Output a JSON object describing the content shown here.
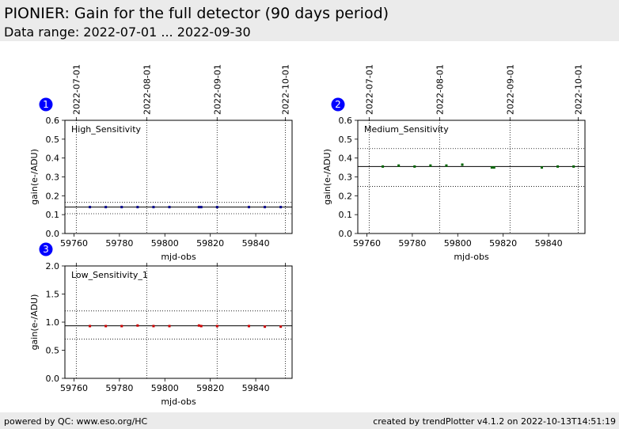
{
  "header": {
    "title": "PIONIER: Gain for the full detector (90 days period)",
    "subtitle": "Data range: 2022-07-01 ... 2022-09-30"
  },
  "footer": {
    "left": "powered by QC: www.eso.org/HC",
    "right": "created by trendPlotter v4.1.2 on 2022-10-13T14:51:19"
  },
  "colors": {
    "header_bg": "#ebebeb",
    "badge": "#0000ff",
    "panel1_points": "#00008b",
    "panel2_points": "#006400",
    "panel3_points": "#cc0000"
  },
  "chart_data": [
    {
      "type": "scatter",
      "panel_number": "1",
      "label": "High_Sensitivity",
      "xlabel": "mjd-obs",
      "ylabel": "gain(e-/ADU)",
      "xlim": [
        59756,
        59856
      ],
      "ylim": [
        0.0,
        0.6
      ],
      "xticks": [
        59760,
        59780,
        59800,
        59820,
        59840
      ],
      "yticks": [
        "0.0",
        "0.1",
        "0.2",
        "0.3",
        "0.4",
        "0.5",
        "0.6"
      ],
      "date_ticks": [
        {
          "label": "2022-07-01",
          "mjd": 59761
        },
        {
          "label": "2022-08-01",
          "mjd": 59792
        },
        {
          "label": "2022-09-01",
          "mjd": 59823
        },
        {
          "label": "2022-10-01",
          "mjd": 59853
        }
      ],
      "reference_line": 0.14,
      "limits": [
        0.105,
        0.165
      ],
      "points": [
        {
          "x": 59767,
          "y": 0.14
        },
        {
          "x": 59774,
          "y": 0.14
        },
        {
          "x": 59781,
          "y": 0.14
        },
        {
          "x": 59788,
          "y": 0.14
        },
        {
          "x": 59795,
          "y": 0.14
        },
        {
          "x": 59802,
          "y": 0.14
        },
        {
          "x": 59815,
          "y": 0.14
        },
        {
          "x": 59816,
          "y": 0.14
        },
        {
          "x": 59823,
          "y": 0.14
        },
        {
          "x": 59837,
          "y": 0.14
        },
        {
          "x": 59844,
          "y": 0.14
        },
        {
          "x": 59851,
          "y": 0.14
        }
      ]
    },
    {
      "type": "scatter",
      "panel_number": "2",
      "label": "Medium_Sensitivity",
      "xlabel": "mjd-obs",
      "ylabel": "gain(e-/ADU)",
      "xlim": [
        59756,
        59856
      ],
      "ylim": [
        0.0,
        0.6
      ],
      "xticks": [
        59760,
        59780,
        59800,
        59820,
        59840
      ],
      "yticks": [
        "0.0",
        "0.1",
        "0.2",
        "0.3",
        "0.4",
        "0.5",
        "0.6"
      ],
      "date_ticks": [
        {
          "label": "2022-07-01",
          "mjd": 59761
        },
        {
          "label": "2022-08-01",
          "mjd": 59792
        },
        {
          "label": "2022-09-01",
          "mjd": 59823
        },
        {
          "label": "2022-10-01",
          "mjd": 59853
        }
      ],
      "reference_line": 0.355,
      "limits": [
        0.25,
        0.45
      ],
      "points": [
        {
          "x": 59767,
          "y": 0.355
        },
        {
          "x": 59774,
          "y": 0.36
        },
        {
          "x": 59781,
          "y": 0.355
        },
        {
          "x": 59788,
          "y": 0.36
        },
        {
          "x": 59795,
          "y": 0.36
        },
        {
          "x": 59802,
          "y": 0.365
        },
        {
          "x": 59815,
          "y": 0.35
        },
        {
          "x": 59816,
          "y": 0.35
        },
        {
          "x": 59837,
          "y": 0.35
        },
        {
          "x": 59844,
          "y": 0.355
        },
        {
          "x": 59851,
          "y": 0.355
        }
      ]
    },
    {
      "type": "scatter",
      "panel_number": "3",
      "label": "Low_Sensitivity_1",
      "xlabel": "mjd-obs",
      "ylabel": "gain(e-/ADU)",
      "xlim": [
        59756,
        59856
      ],
      "ylim": [
        0.0,
        2.0
      ],
      "xticks": [
        59760,
        59780,
        59800,
        59820,
        59840
      ],
      "yticks": [
        "0.0",
        "0.5",
        "1.0",
        "1.5",
        "2.0"
      ],
      "date_ticks": [
        {
          "label": "",
          "mjd": 59761
        },
        {
          "label": "",
          "mjd": 59792
        },
        {
          "label": "",
          "mjd": 59823
        },
        {
          "label": "",
          "mjd": 59853
        }
      ],
      "reference_line": 0.935,
      "limits": [
        0.7,
        1.2
      ],
      "points": [
        {
          "x": 59767,
          "y": 0.93
        },
        {
          "x": 59774,
          "y": 0.93
        },
        {
          "x": 59781,
          "y": 0.93
        },
        {
          "x": 59788,
          "y": 0.94
        },
        {
          "x": 59795,
          "y": 0.93
        },
        {
          "x": 59802,
          "y": 0.93
        },
        {
          "x": 59815,
          "y": 0.94
        },
        {
          "x": 59816,
          "y": 0.93
        },
        {
          "x": 59823,
          "y": 0.93
        },
        {
          "x": 59837,
          "y": 0.93
        },
        {
          "x": 59844,
          "y": 0.92
        },
        {
          "x": 59851,
          "y": 0.92
        }
      ]
    }
  ]
}
